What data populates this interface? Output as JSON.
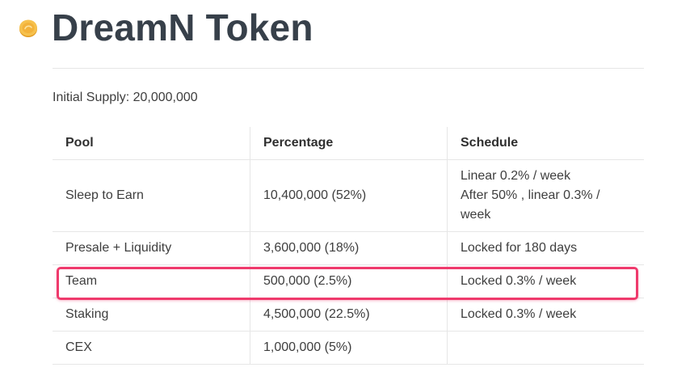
{
  "title": "DreamN Token",
  "initial_supply": "Initial Supply: 20,000,000",
  "table": {
    "headers": [
      "Pool",
      "Percentage",
      "Schedule"
    ],
    "rows": [
      {
        "pool": "Sleep to Earn",
        "percentage": "10,400,000 (52%)",
        "schedule": [
          "Linear 0.2% / week",
          "After 50% , linear 0.3% /",
          "week"
        ]
      },
      {
        "pool": "Presale + Liquidity",
        "percentage": "3,600,000 (18%)",
        "schedule": [
          "Locked for 180 days"
        ]
      },
      {
        "pool": "Team",
        "percentage": "500,000 (2.5%)",
        "schedule": [
          "Locked 0.3% / week"
        ]
      },
      {
        "pool": "Staking",
        "percentage": "4,500,000 (22.5%)",
        "schedule": [
          "Locked 0.3% / week"
        ]
      },
      {
        "pool": "CEX",
        "percentage": "1,000,000 (5%)",
        "schedule": [
          ""
        ]
      }
    ]
  },
  "colors": {
    "highlight": "#ef3a6c",
    "title": "#37404a",
    "coin": "#f2b33d"
  },
  "icons": {
    "coin": "coin-icon"
  }
}
